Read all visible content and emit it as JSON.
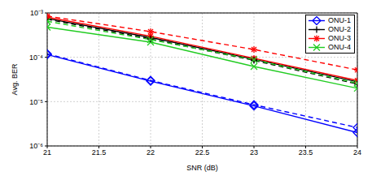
{
  "chart_data": {
    "type": "line",
    "x_label": "SNR (dB)",
    "y_label": "Avg. BER",
    "log": "y",
    "grid": true,
    "legend": "northeast",
    "x": [
      21,
      22,
      23,
      24
    ],
    "xlim": [
      21,
      24
    ],
    "xticks": [
      21,
      21.5,
      22,
      22.5,
      23,
      23.5,
      24
    ],
    "ylim": [
      1e-06,
      0.001
    ],
    "yticks": [
      {
        "value": 1e-06,
        "label": "10⁻⁶"
      },
      {
        "value": 1e-05,
        "label": "10⁻⁵"
      },
      {
        "value": 0.0001,
        "label": "10⁻⁴"
      },
      {
        "value": 0.001,
        "label": "10⁻³"
      }
    ],
    "series": [
      {
        "name": "ONU-1",
        "color": "#0000ff",
        "marker": "diamond",
        "line_style": "solid",
        "values": [
          0.000115,
          2.9e-05,
          8e-06,
          2e-06
        ]
      },
      {
        "name": "ONU-2",
        "color": "#000000",
        "marker": "plus",
        "line_style": "solid",
        "values": [
          0.00075,
          0.00028,
          9e-05,
          2.8e-05
        ]
      },
      {
        "name": "ONU-3",
        "color": "#ff0000",
        "marker": "star",
        "line_style": "solid",
        "values": [
          0.0008,
          0.0003,
          9.5e-05,
          3e-05
        ]
      },
      {
        "name": "ONU-4",
        "color": "#22cc22",
        "marker": "x",
        "line_style": "solid",
        "values": [
          0.00048,
          0.00022,
          6.2e-05,
          2e-05
        ]
      },
      {
        "name": "ONU-1",
        "color": "#0000ff",
        "marker": "diamond",
        "line_style": "dashed",
        "values": [
          0.00012,
          3e-05,
          8.5e-06,
          2.6e-06
        ]
      },
      {
        "name": "ONU-2",
        "color": "#000000",
        "marker": "plus",
        "line_style": "dashed",
        "values": [
          0.00072,
          0.00026,
          8.5e-05,
          2.5e-05
        ]
      },
      {
        "name": "ONU-3",
        "color": "#ff0000",
        "marker": "star",
        "line_style": "dashed",
        "values": [
          0.00085,
          0.00038,
          0.00015,
          5.2e-05
        ]
      },
      {
        "name": "ONU-4",
        "color": "#22cc22",
        "marker": "x",
        "line_style": "dashed",
        "values": [
          0.00065,
          0.00025,
          8.8e-05,
          2.6e-05
        ]
      }
    ]
  }
}
